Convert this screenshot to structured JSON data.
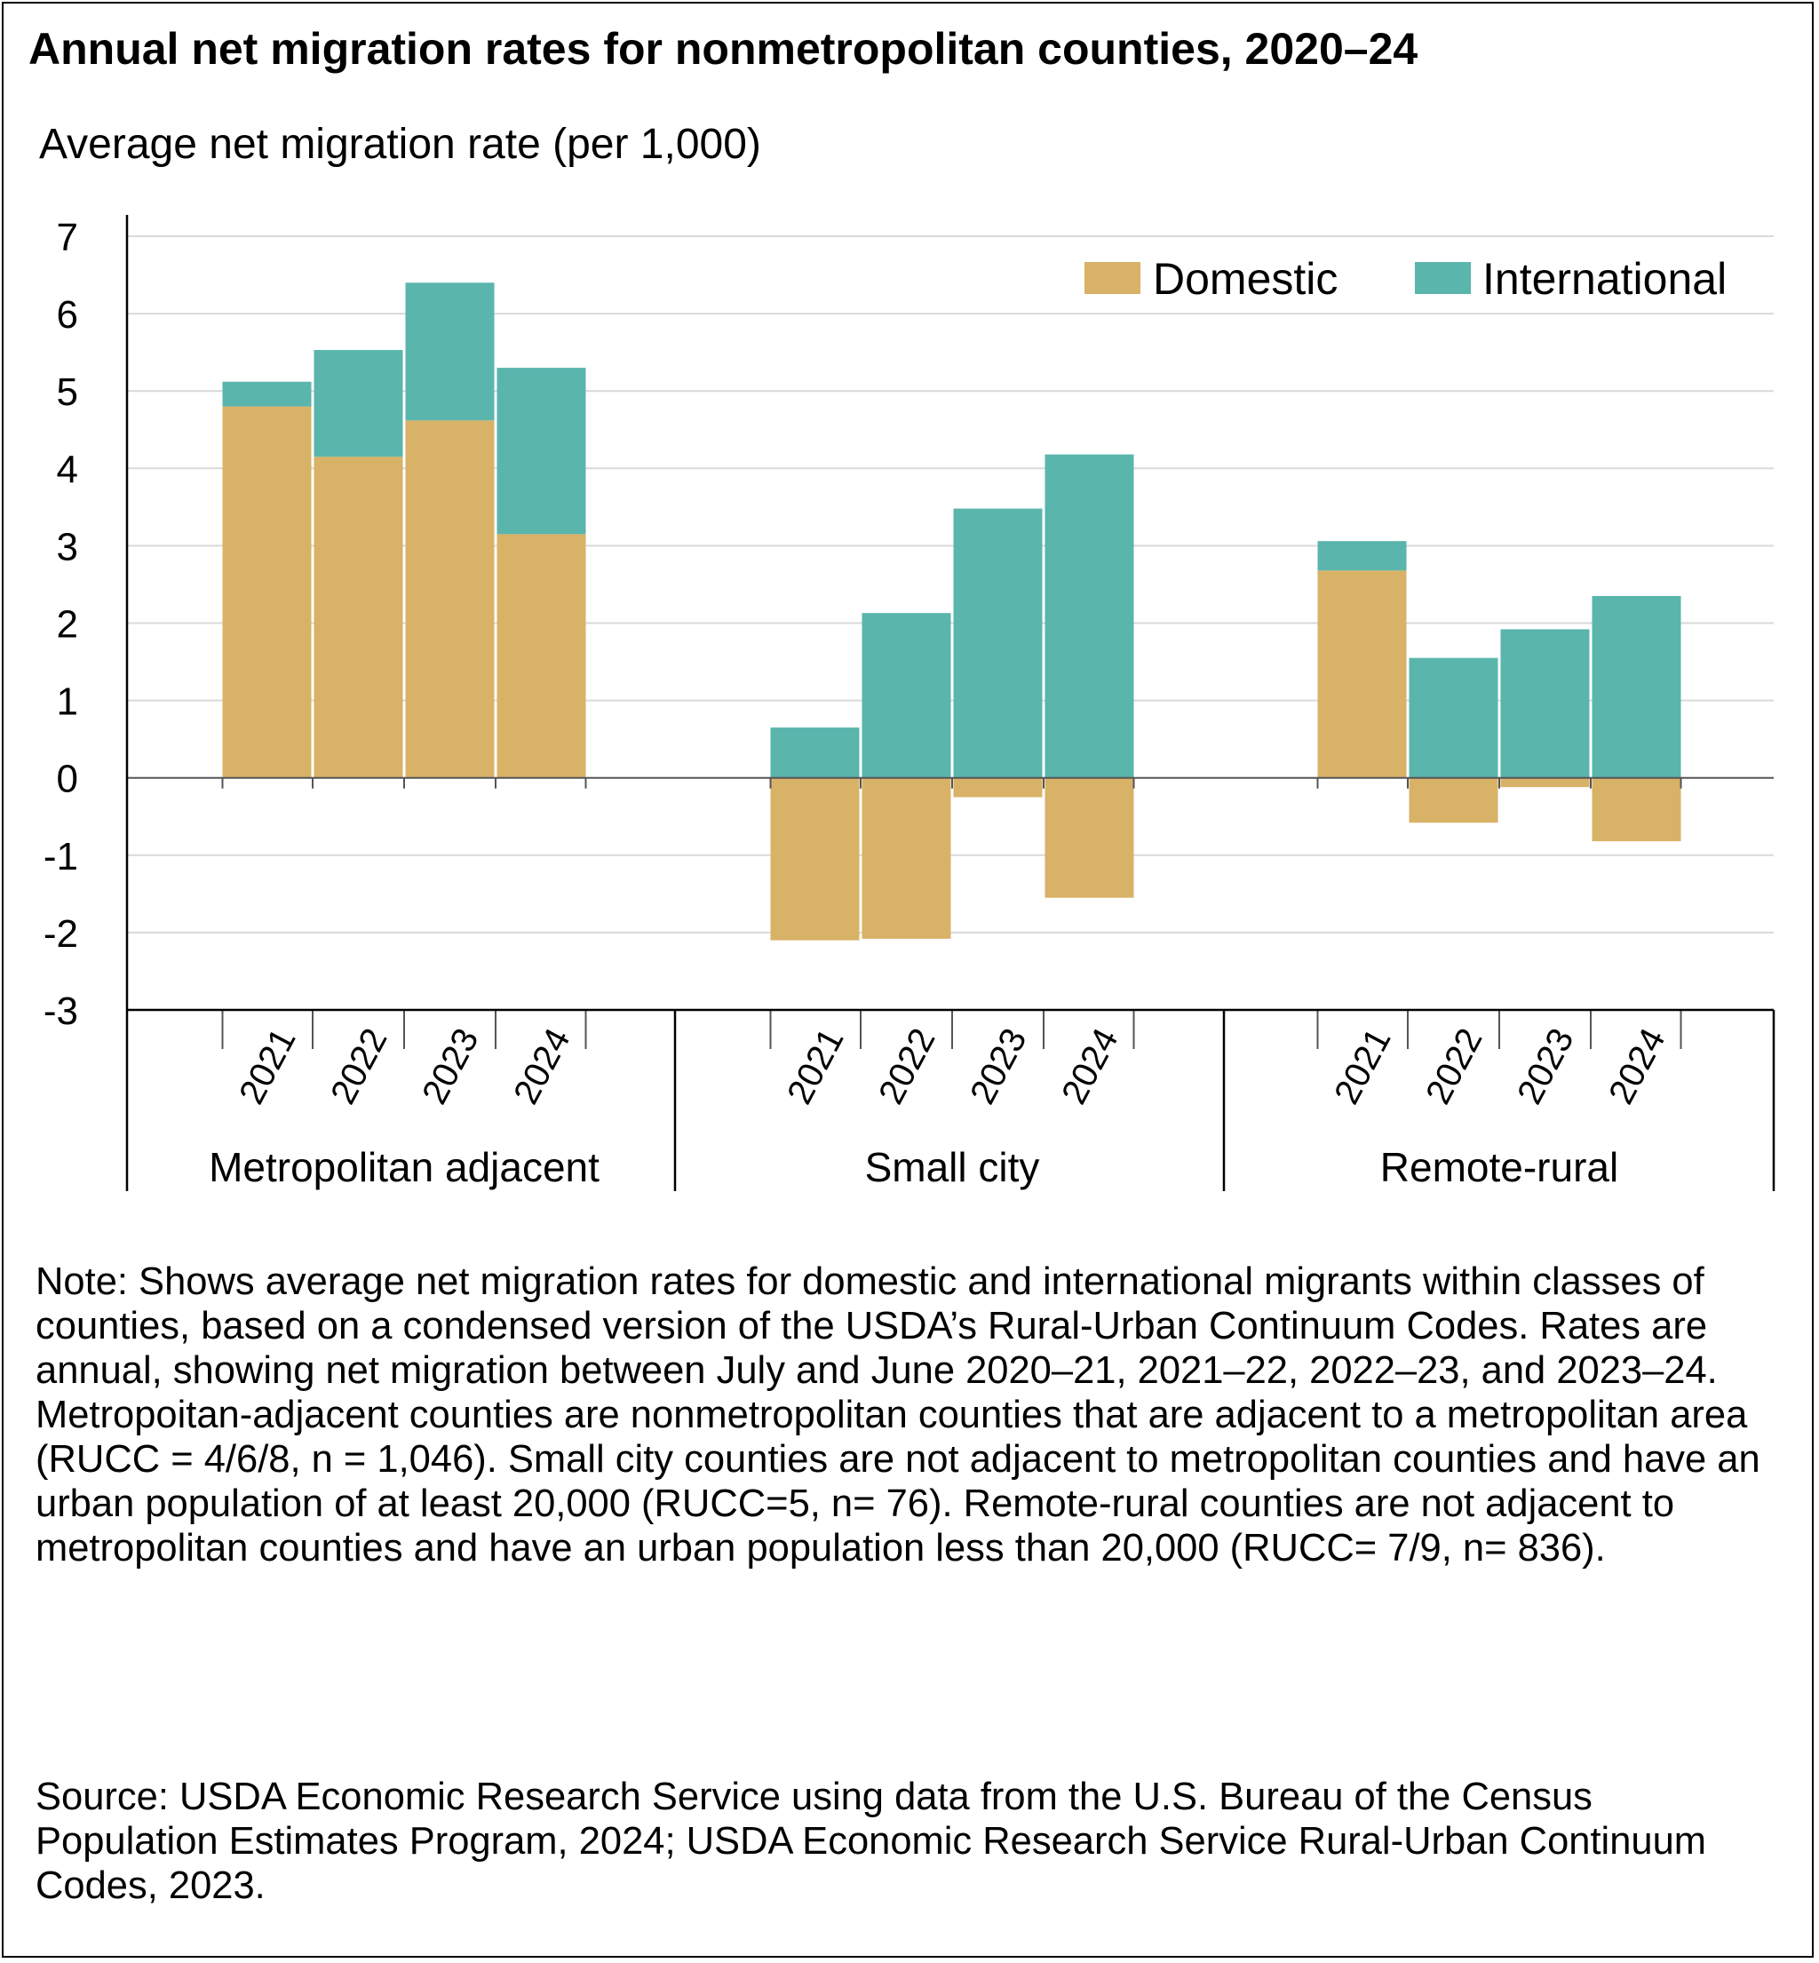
{
  "title": "Annual net migration rates for nonmetropolitan counties, 2020–24",
  "note": "Note: Shows average net migration rates for domestic and international migrants within classes of counties, based on a condensed version of the USDA’s Rural-Urban Continuum Codes. Rates are annual, showing net migration between July and June 2020–21, 2021–22, 2022–23, and 2023–24. Metropoitan-adjacent counties are nonmetropolitan counties that are adjacent to a metropolitan area (RUCC = 4/6/8, n = 1,046). Small city counties are not adjacent to metropolitan counties and have an urban population of at least 20,000 (RUCC=5, n= 76). Remote-rural counties are not adjacent to metropolitan counties and have an urban population less than 20,000 (RUCC= 7/9, n= 836).",
  "source": "Source: USDA Economic Research Service using data from the U.S. Bureau of the Census Population Estimates Program, 2024; USDA Economic Research Service Rural-Urban Continuum Codes, 2023.",
  "colors": {
    "domestic": "#d8b266",
    "international": "#5ab5ad",
    "grid": "#d9d9d9",
    "axis": "#000000"
  },
  "chart_data": {
    "type": "bar",
    "stacked": true,
    "ylabel": "Average net migration rate (per 1,000)",
    "ylim": [
      -3,
      7
    ],
    "yticks": [
      7,
      6,
      5,
      4,
      3,
      2,
      1,
      0,
      -1,
      -2,
      -3
    ],
    "grid": true,
    "legend_position": "top-right",
    "years": [
      "2021",
      "2022",
      "2023",
      "2024"
    ],
    "groups": [
      {
        "name": "Metropolitan adjacent",
        "domestic": [
          4.8,
          4.15,
          4.62,
          3.15
        ],
        "international": [
          0.32,
          1.38,
          1.78,
          2.15
        ]
      },
      {
        "name": "Small city",
        "domestic": [
          -2.1,
          -2.08,
          -0.25,
          -1.55
        ],
        "international": [
          0.65,
          2.13,
          3.48,
          4.18
        ]
      },
      {
        "name": "Remote-rural",
        "domestic": [
          2.68,
          -0.58,
          -0.12,
          -0.82
        ],
        "international": [
          0.38,
          1.55,
          1.92,
          2.35
        ]
      }
    ],
    "series": [
      {
        "name": "Domestic",
        "key": "domestic"
      },
      {
        "name": "International",
        "key": "international"
      }
    ]
  }
}
